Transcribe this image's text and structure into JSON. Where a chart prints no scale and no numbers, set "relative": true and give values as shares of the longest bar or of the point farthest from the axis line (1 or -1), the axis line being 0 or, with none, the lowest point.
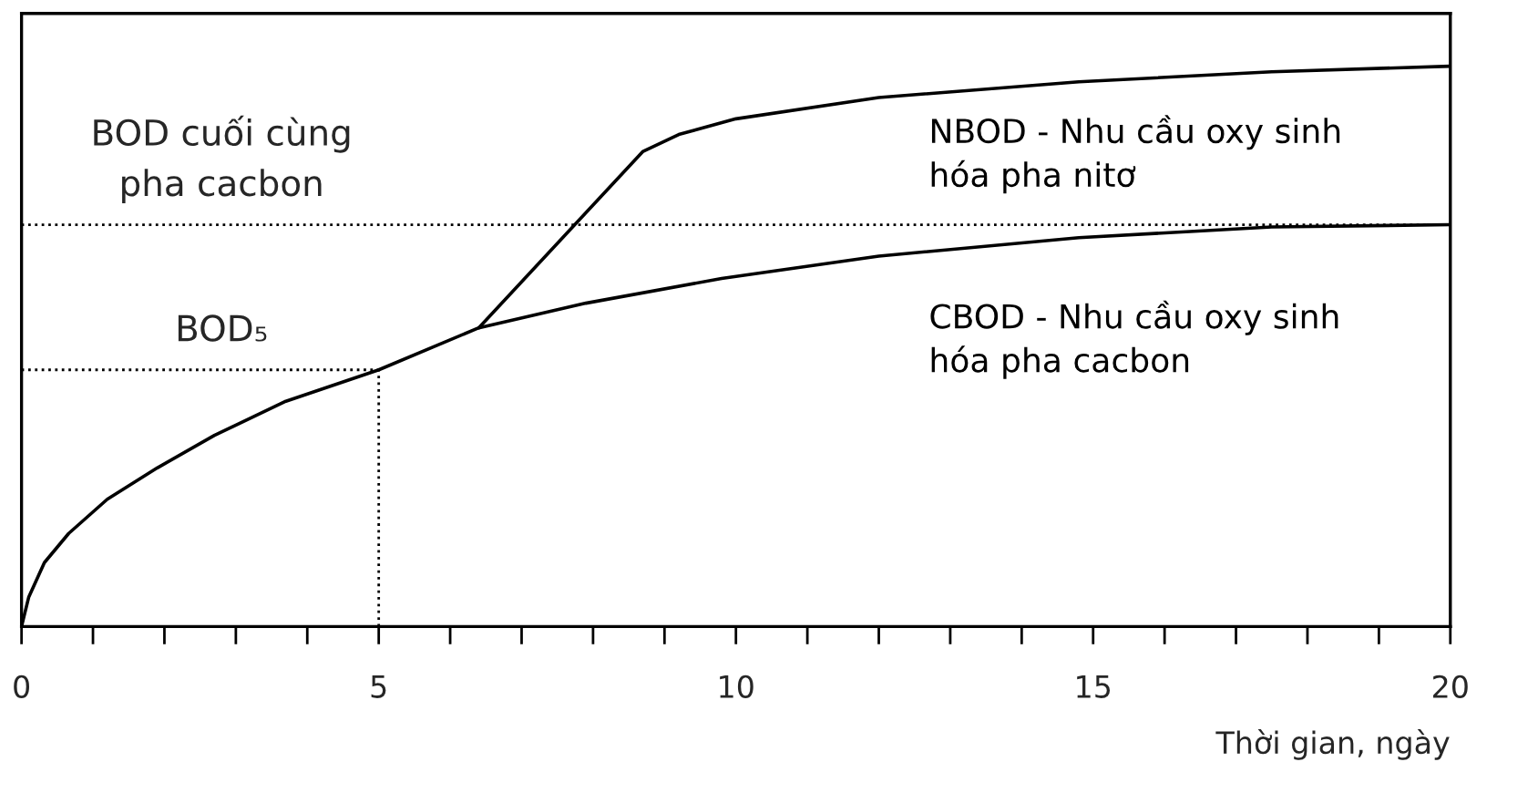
{
  "chart_data": {
    "type": "line",
    "relative": true,
    "xlabel": "Thời gian, ngày",
    "xlim": [
      0,
      20
    ],
    "xticks": [
      0,
      {
        "value": 1,
        "label": null
      },
      {
        "value": 2,
        "label": null
      },
      {
        "value": 3,
        "label": null
      },
      {
        "value": 4,
        "label": null
      },
      5,
      {
        "value": 6,
        "label": null
      },
      {
        "value": 7,
        "label": null
      },
      {
        "value": 8,
        "label": null
      },
      {
        "value": 9,
        "label": null
      },
      10,
      {
        "value": 11,
        "label": null
      },
      {
        "value": 12,
        "label": null
      },
      {
        "value": 13,
        "label": null
      },
      {
        "value": 14,
        "label": null
      },
      15,
      {
        "value": 16,
        "label": null
      },
      {
        "value": 17,
        "label": null
      },
      {
        "value": 18,
        "label": null
      },
      {
        "value": 19,
        "label": null
      },
      20
    ],
    "series": [
      {
        "name": "CBOD - Nhu cầu oxy sinh\nhóa pha cacbon",
        "color": "#000000",
        "x": [
          0,
          0.1,
          0.32,
          0.66,
          1.2,
          1.9,
          2.7,
          3.7,
          5,
          6.4,
          7.9,
          9.8,
          12,
          14.8,
          17.5,
          20
        ],
        "values": [
          0,
          0.052,
          0.114,
          0.166,
          0.227,
          0.283,
          0.341,
          0.402,
          0.458,
          0.533,
          0.577,
          0.621,
          0.661,
          0.694,
          0.713,
          0.717
        ]
      },
      {
        "name": "NBOD - Nhu cầu oxy sinh\nhóa pha nitơ",
        "color": "#000000",
        "x": [
          6.4,
          8.7,
          9.2,
          10,
          12,
          14.8,
          17.5,
          20
        ],
        "values": [
          0.533,
          0.848,
          0.878,
          0.906,
          0.944,
          0.972,
          0.99,
          1.0
        ]
      }
    ],
    "ref_lines": [
      {
        "axis": "y",
        "value": 0.717,
        "label": "BOD cuối cùng\npha cacbon",
        "color": "#000000",
        "line_style": "dotted"
      },
      {
        "axis": "y",
        "value": 0.458,
        "label": "BOD₅",
        "color": "#000000",
        "line_style": "dotted"
      },
      {
        "axis": "x",
        "value": 5,
        "color": "#000000",
        "line_style": "dotted"
      }
    ],
    "grid": false,
    "legend": false,
    "marker": "none",
    "line_style": "solid"
  }
}
